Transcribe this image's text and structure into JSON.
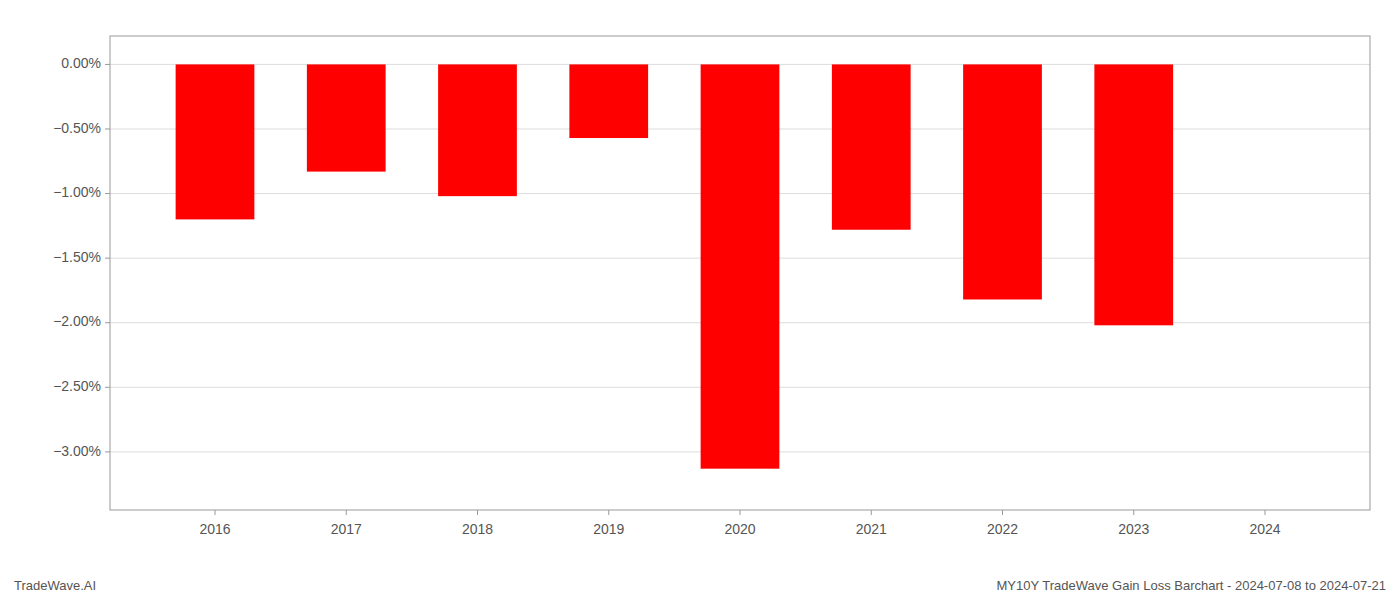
{
  "chart_data": {
    "type": "bar",
    "title": "MY10Y TradeWave Gain Loss Barchart - 2024-07-08 to 2024-07-21",
    "annotations": [
      "TradeWave.AI"
    ],
    "x": [
      2016,
      2017,
      2018,
      2019,
      2020,
      2021,
      2022,
      2023,
      2024
    ],
    "values": [
      -1.2,
      -0.83,
      -1.02,
      -0.57,
      -3.13,
      -1.28,
      -1.82,
      -2.02,
      null
    ],
    "color": "#ff0000",
    "xlim": [
      2015.2,
      2024.8
    ],
    "xticks": [
      2016,
      2017,
      2018,
      2019,
      2020,
      2021,
      2022,
      2023,
      2024
    ],
    "ylim": [
      -3.45,
      0.22
    ],
    "yticks": [
      {
        "value": 0.0,
        "label": "0.00%"
      },
      {
        "value": -0.5,
        "label": "−0.50%"
      },
      {
        "value": -1.0,
        "label": "−1.00%"
      },
      {
        "value": -1.5,
        "label": "−1.50%"
      },
      {
        "value": -2.0,
        "label": "−2.00%"
      },
      {
        "value": -2.5,
        "label": "−2.50%"
      },
      {
        "value": -3.0,
        "label": "−3.00%"
      }
    ],
    "grid": true
  }
}
